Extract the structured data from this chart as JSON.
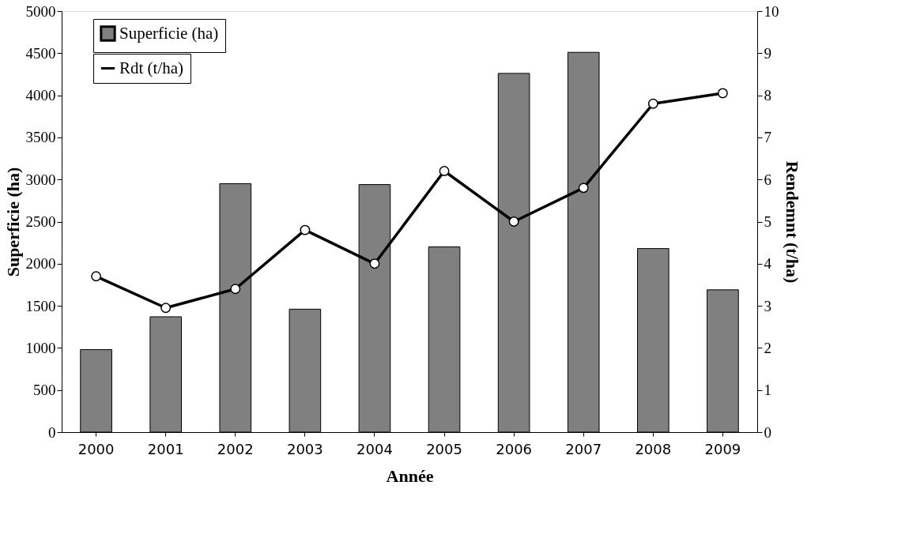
{
  "chart_data": {
    "type": "bar",
    "xlabel": "Année",
    "ylabel": "Superficie (ha)",
    "y2label": "Rendemnt (t/ha)",
    "categories": [
      "2000",
      "2001",
      "2002",
      "2003",
      "2004",
      "2005",
      "2006",
      "2007",
      "2008",
      "2009"
    ],
    "series": [
      {
        "name": "Superficie (ha)",
        "color": "#808080",
        "values": [
          980,
          1370,
          2950,
          1460,
          2940,
          2200,
          4260,
          4510,
          2180,
          1690
        ]
      },
      {
        "name": "Rdt (t/ha)",
        "type": "line",
        "axis": "y2",
        "color": "#000000",
        "marker": "circle",
        "line_style": "solid",
        "values": [
          3.7,
          2.95,
          3.4,
          4.8,
          4.0,
          6.2,
          5.0,
          5.8,
          7.8,
          8.05
        ]
      }
    ],
    "ylim": [
      0,
      5000
    ],
    "yticks": [
      0,
      500,
      1000,
      1500,
      2000,
      2500,
      3000,
      3500,
      4000,
      4500,
      5000
    ],
    "y2lim": [
      0,
      10
    ],
    "y2ticks": [
      0,
      1,
      2,
      3,
      4,
      5,
      6,
      7,
      8,
      9,
      10
    ],
    "grid": false,
    "legend": "top left"
  }
}
